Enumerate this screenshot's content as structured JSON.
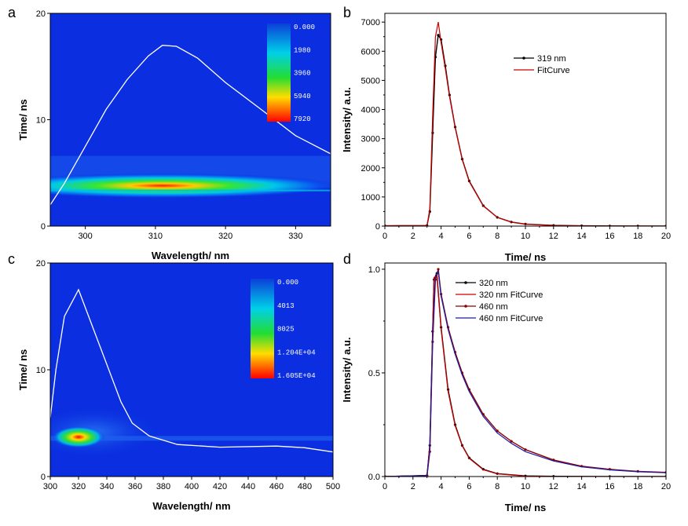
{
  "figure": {
    "panels": [
      "a",
      "b",
      "c",
      "d"
    ]
  },
  "chart_data": [
    {
      "id": "a",
      "type": "heatmap",
      "xlabel": "Wavelength/ nm",
      "ylabel": "Time/ ns",
      "xlim": [
        295,
        335
      ],
      "ylim": [
        0,
        20
      ],
      "xticks": [
        300,
        310,
        320,
        330
      ],
      "yticks": [
        0,
        10,
        20
      ],
      "colorbar": {
        "labels": [
          "0.000",
          "1980",
          "3960",
          "5940",
          "7920"
        ]
      },
      "intensity_peak": {
        "time_ns": 3.8,
        "wavelength_nm": 311,
        "value": 7920
      },
      "overlay_curve": {
        "color": "#ffffff",
        "x": [
          295,
          297,
          300,
          303,
          306,
          309,
          311,
          313,
          316,
          320,
          325,
          330,
          335
        ],
        "y": [
          2.0,
          4.0,
          7.5,
          11.0,
          13.8,
          16.0,
          17.0,
          16.9,
          15.8,
          13.5,
          11.0,
          8.5,
          6.8
        ]
      }
    },
    {
      "id": "b",
      "type": "line",
      "xlabel": "Time/ ns",
      "ylabel": "Intensity/ a.u.",
      "xlim": [
        0,
        20
      ],
      "ylim": [
        0,
        7300
      ],
      "xticks": [
        0,
        2,
        4,
        6,
        8,
        10,
        12,
        14,
        16,
        18,
        20
      ],
      "yticks": [
        0,
        1000,
        2000,
        3000,
        4000,
        5000,
        6000,
        7000
      ],
      "legend_position": "top-right",
      "series": [
        {
          "name": "319 nm",
          "color": "#000000",
          "style": "line+points",
          "x": [
            0,
            3,
            3.2,
            3.4,
            3.6,
            3.8,
            4.0,
            4.3,
            4.6,
            5.0,
            5.5,
            6.0,
            7.0,
            8.0,
            9.0,
            10.0,
            12.0,
            14.0,
            16.0,
            18.0,
            20.0
          ],
          "values": [
            10,
            20,
            500,
            3200,
            5800,
            6550,
            6400,
            5500,
            4500,
            3400,
            2300,
            1550,
            700,
            300,
            140,
            70,
            25,
            10,
            5,
            3,
            2
          ]
        },
        {
          "name": "FitCurve",
          "color": "#cc0000",
          "style": "line",
          "x": [
            0,
            3,
            3.2,
            3.4,
            3.6,
            3.8,
            4.0,
            4.3,
            4.6,
            5.0,
            5.5,
            6.0,
            7.0,
            8.0,
            9.0,
            10.0,
            12.0,
            14.0,
            16.0,
            18.0,
            20.0
          ],
          "values": [
            10,
            20,
            600,
            3800,
            6500,
            7000,
            6300,
            5400,
            4450,
            3380,
            2280,
            1530,
            690,
            300,
            135,
            65,
            20,
            8,
            4,
            2,
            1
          ]
        }
      ]
    },
    {
      "id": "c",
      "type": "heatmap",
      "xlabel": "Wavelength/ nm",
      "ylabel": "Time/ ns",
      "xlim": [
        300,
        500
      ],
      "ylim": [
        0,
        20
      ],
      "xticks": [
        300,
        320,
        340,
        360,
        380,
        400,
        420,
        440,
        460,
        480,
        500
      ],
      "yticks": [
        0,
        10,
        20
      ],
      "colorbar": {
        "labels": [
          "0.000",
          "4013",
          "8025",
          "1.204E+04",
          "1.605E+04"
        ]
      },
      "intensity_peak": {
        "time_ns": 3.7,
        "wavelength_nm": 320,
        "value": 16050
      },
      "overlay_curve": {
        "color": "#ffffff",
        "x": [
          300,
          304,
          310,
          320,
          330,
          340,
          350,
          358,
          370,
          390,
          420,
          460,
          480,
          500
        ],
        "y": [
          5.5,
          10.0,
          15.0,
          17.5,
          14.0,
          10.5,
          7.0,
          5.0,
          3.8,
          3.0,
          2.75,
          2.85,
          2.7,
          2.3
        ]
      }
    },
    {
      "id": "d",
      "type": "line",
      "xlabel": "Time/ ns",
      "ylabel": "Intensity/ a.u.",
      "xlim": [
        0,
        20
      ],
      "ylim": [
        0,
        1.03
      ],
      "xticks": [
        0,
        2,
        4,
        6,
        8,
        10,
        12,
        14,
        16,
        18,
        20
      ],
      "yticks": [
        0.0,
        0.5,
        1.0
      ],
      "ytick_labels": [
        "0.0",
        "0.5",
        "1.0"
      ],
      "legend_position": "top-right",
      "series": [
        {
          "name": "320 nm",
          "color": "#000000",
          "style": "line+points",
          "x": [
            0,
            3,
            3.2,
            3.4,
            3.5,
            3.7,
            4.0,
            4.5,
            5.0,
            5.5,
            6.0,
            7.0,
            8.0,
            10.0,
            12.0,
            16.0,
            20.0
          ],
          "values": [
            0,
            0.005,
            0.15,
            0.7,
            0.95,
            0.98,
            0.72,
            0.42,
            0.25,
            0.15,
            0.09,
            0.035,
            0.014,
            0.003,
            0.001,
            0.0,
            0.0
          ]
        },
        {
          "name": "320 nm FitCurve",
          "color": "#cc0000",
          "style": "line",
          "x": [
            0,
            3,
            3.2,
            3.4,
            3.5,
            3.7,
            4.0,
            4.5,
            5.0,
            5.5,
            6.0,
            7.0,
            8.0,
            10.0,
            12.0,
            16.0,
            20.0
          ],
          "values": [
            0,
            0.005,
            0.16,
            0.72,
            0.96,
            0.97,
            0.71,
            0.41,
            0.245,
            0.148,
            0.088,
            0.033,
            0.013,
            0.002,
            0.0,
            0.0,
            0.0
          ]
        },
        {
          "name": "460 nm",
          "color": "#8b0000",
          "style": "line+points",
          "x": [
            0,
            3,
            3.2,
            3.4,
            3.6,
            3.8,
            4.0,
            4.5,
            5.0,
            5.5,
            6.0,
            7.0,
            8.0,
            9.0,
            10.0,
            12.0,
            14.0,
            16.0,
            18.0,
            20.0
          ],
          "values": [
            0,
            0.005,
            0.12,
            0.65,
            0.95,
            1.0,
            0.88,
            0.72,
            0.6,
            0.5,
            0.42,
            0.3,
            0.22,
            0.17,
            0.13,
            0.08,
            0.05,
            0.035,
            0.025,
            0.02
          ]
        },
        {
          "name": "460 nm FitCurve",
          "color": "#1a1aa6",
          "style": "line",
          "x": [
            0,
            3,
            3.2,
            3.4,
            3.6,
            3.8,
            4.0,
            4.5,
            5.0,
            5.5,
            6.0,
            7.0,
            8.0,
            9.0,
            10.0,
            12.0,
            14.0,
            16.0,
            18.0,
            20.0
          ],
          "values": [
            0,
            0.005,
            0.13,
            0.68,
            0.97,
            0.99,
            0.87,
            0.71,
            0.59,
            0.49,
            0.41,
            0.29,
            0.21,
            0.16,
            0.12,
            0.075,
            0.047,
            0.032,
            0.023,
            0.018
          ]
        }
      ]
    }
  ]
}
